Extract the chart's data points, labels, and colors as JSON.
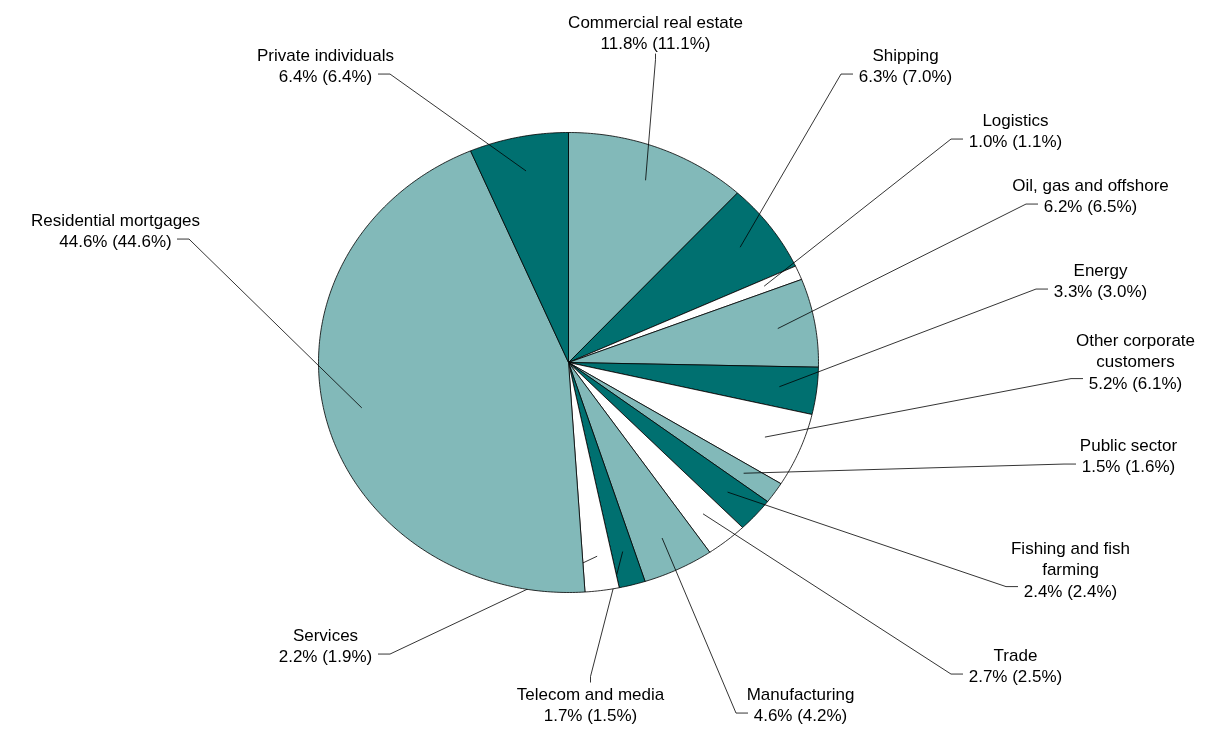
{
  "chart_data": {
    "type": "pie",
    "categories": [
      "Commercial real estate",
      "Shipping",
      "Logistics",
      "Oil, gas and offshore",
      "Energy",
      "Other corporate customers",
      "Public sector",
      "Fishing and fish farming",
      "Trade",
      "Manufacturing",
      "Telecom and media",
      "Services",
      "Residential mortgages",
      "Private individuals"
    ],
    "values": [
      11.8,
      6.3,
      1.0,
      6.2,
      3.3,
      5.2,
      1.5,
      2.4,
      2.7,
      4.6,
      1.7,
      2.2,
      44.6,
      6.4
    ],
    "value_labels": [
      "11.8% (11.1%)",
      "6.3% (7.0%)",
      "1.0% (1.1%)",
      "6.2% (6.5%)",
      "3.3% (3.0%)",
      "5.2% (6.1%)",
      "1.5% (1.6%)",
      "2.4% (2.4%)",
      "2.7% (2.5%)",
      "4.6% (4.2%)",
      "1.7% (1.5%)",
      "2.2% (1.9%)",
      "44.6% (44.6%)",
      "6.4% (6.4%)"
    ],
    "colors": [
      "#82b9b9",
      "#007070",
      "#ffffff",
      "#82b9b9",
      "#007070",
      "#ffffff",
      "#82b9b9",
      "#007070",
      "#ffffff",
      "#82b9b9",
      "#007070",
      "#ffffff",
      "#82b9b9",
      "#007070"
    ]
  }
}
